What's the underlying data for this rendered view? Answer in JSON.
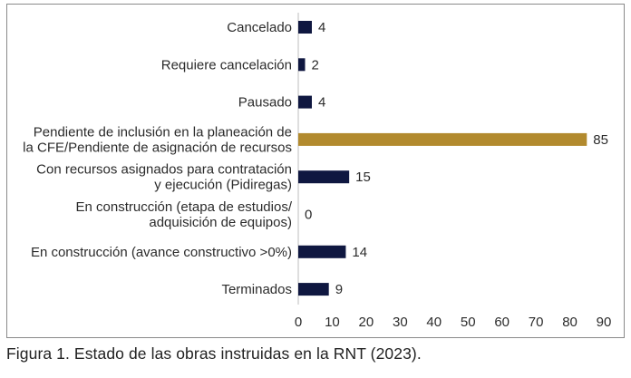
{
  "chart_data": {
    "type": "bar",
    "orientation": "horizontal",
    "categories": [
      [
        "Cancelado"
      ],
      [
        "Requiere cancelación"
      ],
      [
        "Pausado"
      ],
      [
        "Pendiente de inclusión en la planeación de",
        "la CFE/Pendiente de asignación de recursos"
      ],
      [
        "Con recursos asignados para contratación",
        "y ejecución (Pidiregas)"
      ],
      [
        "En construcción (etapa de estudios/",
        "adquisición de equipos)"
      ],
      [
        "En construcción (avance constructivo >0%)"
      ],
      [
        "Terminados"
      ]
    ],
    "values": [
      4,
      2,
      4,
      85,
      15,
      0,
      14,
      9
    ],
    "bar_colors": [
      "#0f1740",
      "#0f1740",
      "#0f1740",
      "#b28a2e",
      "#0f1740",
      "#0f1740",
      "#0f1740",
      "#0f1740"
    ],
    "xlim": [
      0,
      90
    ],
    "xticks": [
      0,
      10,
      20,
      30,
      40,
      50,
      60,
      70,
      80,
      90
    ],
    "grid": false,
    "title": "",
    "xlabel": "",
    "ylabel": ""
  },
  "caption": "Figura 1. Estado de las obras instruidas en la RNT (2023)."
}
